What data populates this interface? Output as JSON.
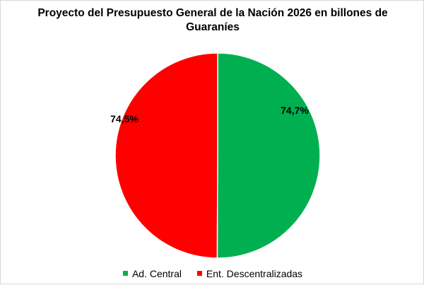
{
  "chart_data": {
    "type": "pie",
    "title": "Proyecto del Presupuesto General  de la Nación 2026 en billones de Guaraníes",
    "legend_position": "bottom",
    "slices": [
      {
        "name": "Ad. Central",
        "value": 50.07,
        "label": "74,7%",
        "color": "#00b050"
      },
      {
        "name": "Ent. Descentralizadas",
        "value": 49.93,
        "label": "74,5%",
        "color": "#ff0000"
      }
    ]
  }
}
